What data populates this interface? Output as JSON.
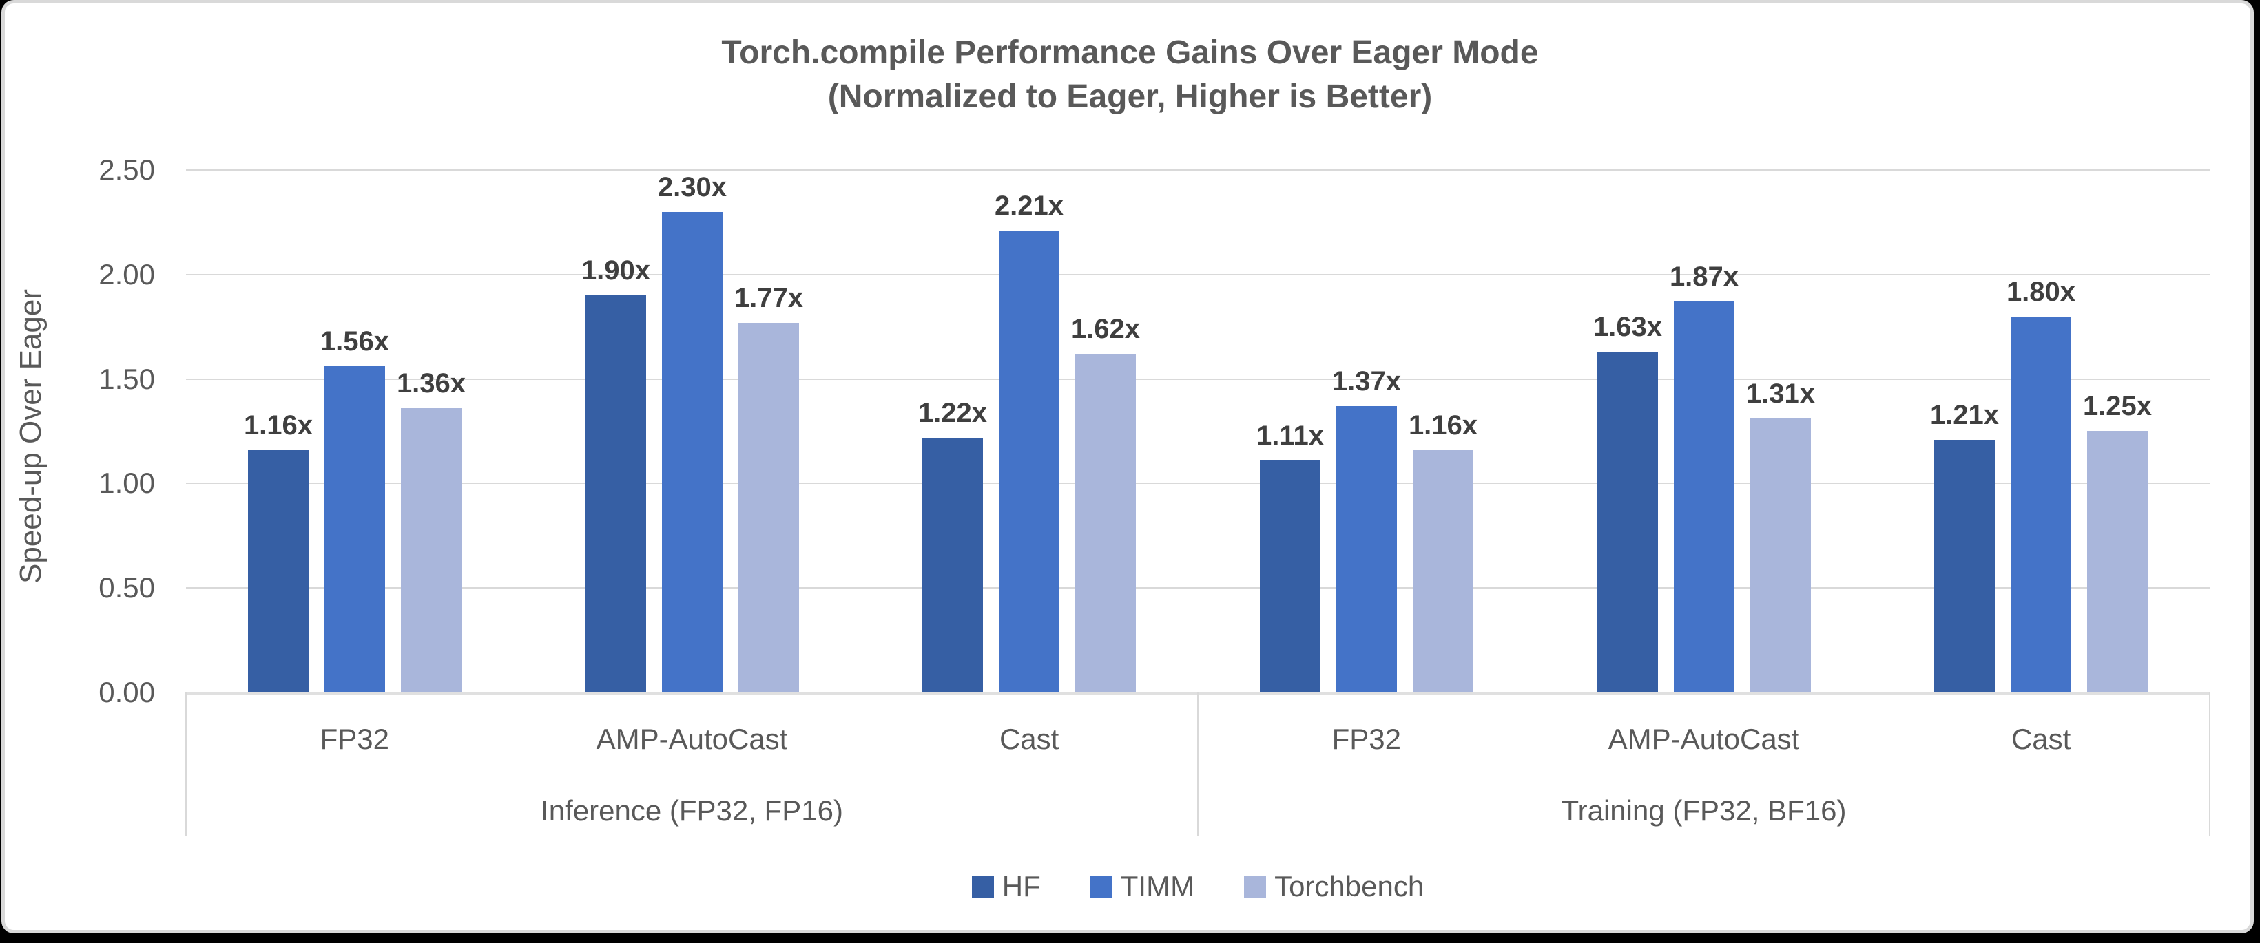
{
  "window": {
    "background": "#000000",
    "card_background": "#ffffff",
    "card_border_color": "#d9d9d9"
  },
  "chart_data": {
    "type": "bar",
    "title": "Torch.compile Performance Gains Over Eager Mode",
    "subtitle": "(Normalized to Eager, Higher is Better)",
    "ylabel": "Speed-up Over Eager",
    "ylim": [
      0,
      2.5
    ],
    "ytick_step": 0.5,
    "yticks": [
      "0.00",
      "0.50",
      "1.00",
      "1.50",
      "2.00",
      "2.50"
    ],
    "grid": true,
    "legend_position": "bottom",
    "categories": [
      "FP32",
      "AMP-AutoCast",
      "Cast",
      "FP32",
      "AMP-AutoCast",
      "Cast"
    ],
    "category_groups": [
      {
        "label": "Inference (FP32, FP16)",
        "from": 0,
        "to": 2
      },
      {
        "label": "Training (FP32, BF16)",
        "from": 3,
        "to": 5
      }
    ],
    "series": [
      {
        "name": "HF",
        "color": "#365FA4",
        "values": [
          1.16,
          1.9,
          1.22,
          1.11,
          1.63,
          1.21
        ]
      },
      {
        "name": "TIMM",
        "color": "#4473C8",
        "values": [
          1.56,
          2.3,
          2.21,
          1.37,
          1.87,
          1.8
        ]
      },
      {
        "name": "Torchbench",
        "color": "#A9B6DB",
        "values": [
          1.36,
          1.77,
          1.62,
          1.16,
          1.31,
          1.25
        ]
      }
    ],
    "value_label_suffix": "x",
    "value_label_decimals": 2,
    "text_color": "#595959",
    "value_label_color": "#3f3f3f",
    "gridline_color": "#d9d9d9"
  }
}
